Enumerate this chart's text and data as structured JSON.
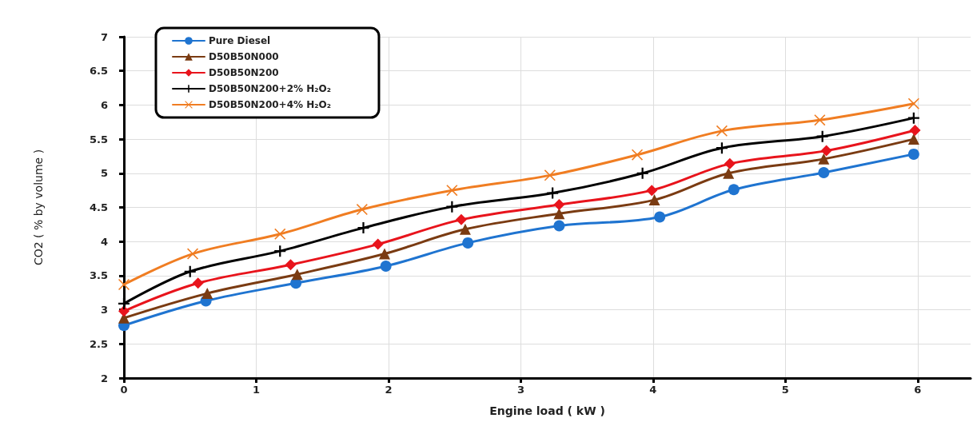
{
  "chart_data": {
    "type": "line",
    "xlabel": "Engine load ( kW )",
    "ylabel": "CO2 ( % by volume )",
    "xlim": [
      0,
      6.4
    ],
    "xticks": [
      0,
      1,
      2,
      3,
      4,
      5,
      6
    ],
    "ylim": [
      2,
      7
    ],
    "yticks": [
      2,
      2.5,
      3,
      3.5,
      4,
      4.5,
      5,
      5.5,
      6,
      6.5,
      7
    ],
    "grid": true,
    "legend": "top left",
    "line_style": "solid",
    "series": [
      {
        "name": "Pure Diesel",
        "color": "#1f74d0",
        "marker": "circle",
        "x": [
          0,
          0.62,
          1.3,
          1.98,
          2.6,
          3.29,
          4.05,
          4.61,
          5.29,
          5.97
        ],
        "values": [
          2.77,
          3.13,
          3.39,
          3.64,
          3.98,
          4.23,
          4.36,
          4.76,
          5.01,
          5.28
        ]
      },
      {
        "name": "D50B50N000",
        "color": "#7a3b12",
        "marker": "triangle",
        "x": [
          0,
          0.63,
          1.31,
          1.97,
          2.58,
          3.29,
          4.01,
          4.57,
          5.29,
          5.97
        ],
        "values": [
          2.88,
          3.24,
          3.52,
          3.82,
          4.18,
          4.41,
          4.61,
          5.0,
          5.21,
          5.5
        ]
      },
      {
        "name": "D50B50N200",
        "color": "#e8141c",
        "marker": "diamond",
        "x": [
          0,
          0.56,
          1.26,
          1.92,
          2.55,
          3.29,
          3.99,
          4.58,
          5.31,
          5.98
        ],
        "values": [
          2.98,
          3.39,
          3.66,
          3.96,
          4.32,
          4.54,
          4.75,
          5.14,
          5.33,
          5.63
        ]
      },
      {
        "name": "D50B50N200+2% H₂O₂",
        "color": "#000000",
        "marker": "plus",
        "x": [
          0,
          0.5,
          1.18,
          1.81,
          2.48,
          3.24,
          3.92,
          4.52,
          5.28,
          5.97
        ],
        "values": [
          3.09,
          3.56,
          3.86,
          4.2,
          4.51,
          4.71,
          5.0,
          5.37,
          5.54,
          5.81
        ]
      },
      {
        "name": "D50B50N200+4% H₂O₂",
        "color": "#f07d22",
        "marker": "cross",
        "x": [
          0,
          0.52,
          1.18,
          1.8,
          2.48,
          3.22,
          3.88,
          4.52,
          5.26,
          5.97
        ],
        "values": [
          3.37,
          3.82,
          4.11,
          4.47,
          4.75,
          4.97,
          5.27,
          5.62,
          5.78,
          6.02
        ]
      }
    ]
  }
}
